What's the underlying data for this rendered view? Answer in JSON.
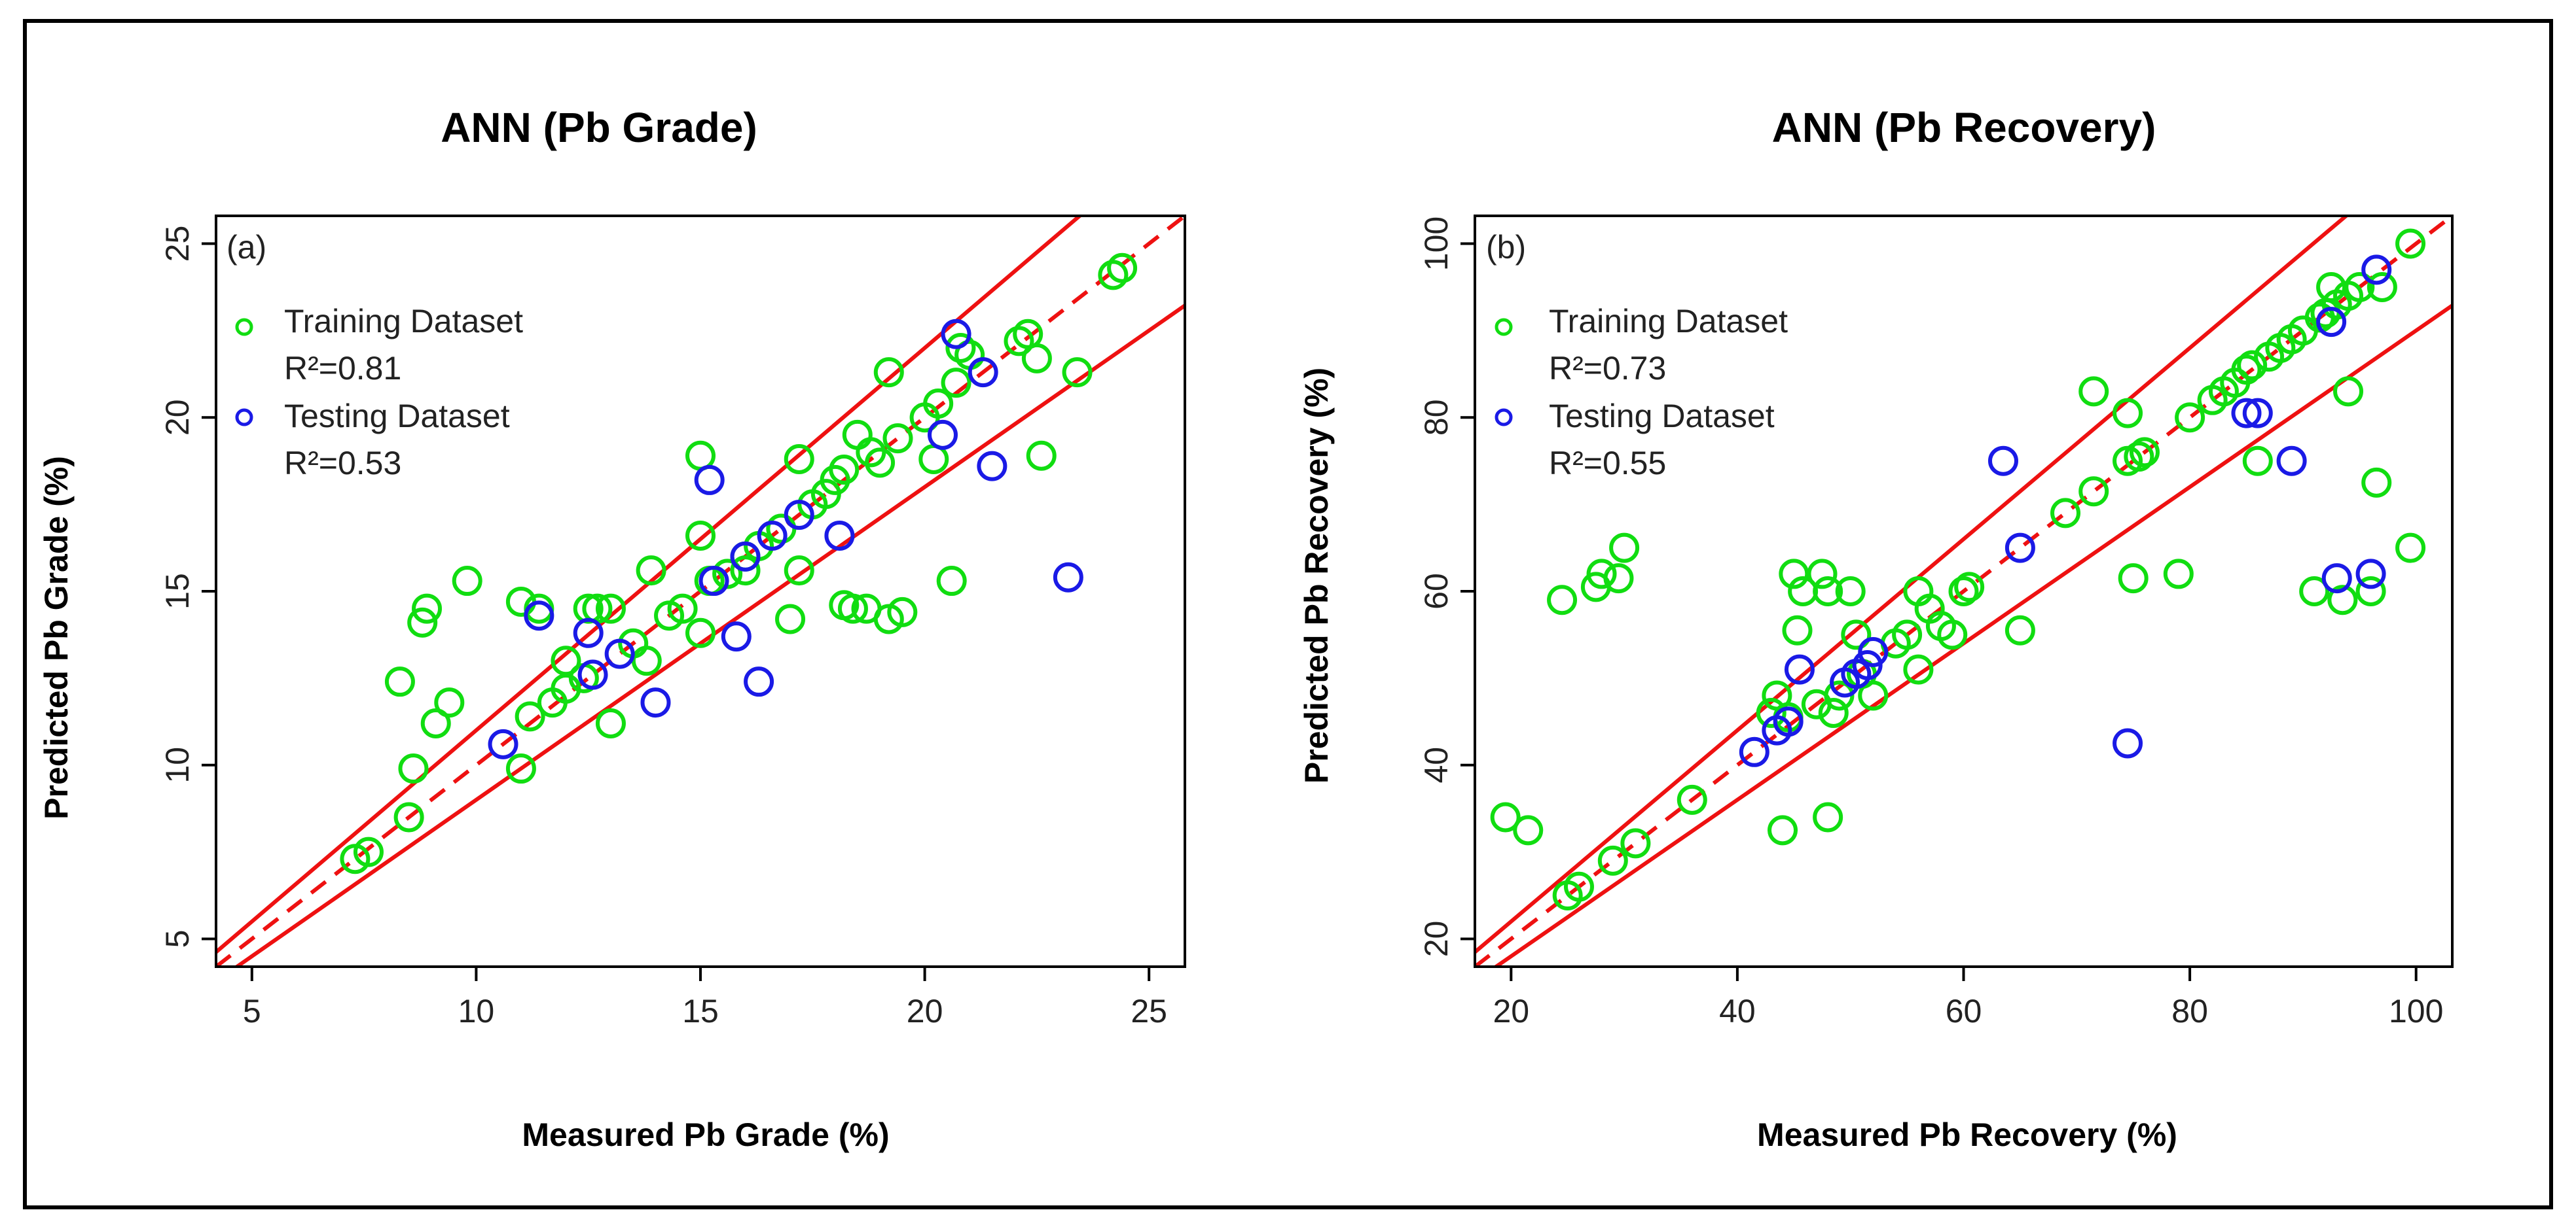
{
  "colors": {
    "training": "#11dd11",
    "testing": "#1a1ae6",
    "lines": "#ee1111",
    "frame": "#000000"
  },
  "chart_data": [
    {
      "type": "scatter",
      "panel_label": "(a)",
      "title": "ANN (Pb Grade)",
      "xlabel": "Measured Pb Grade (%)",
      "ylabel": "Predicted Pb Grade (%)",
      "xlim": [
        4.2,
        25.8
      ],
      "ylim": [
        4.2,
        25.8
      ],
      "xticks": [
        5,
        10,
        15,
        20,
        25
      ],
      "yticks": [
        5,
        10,
        15,
        20,
        25
      ],
      "xtick_labels": [
        "5",
        "10",
        "15",
        "20",
        "25"
      ],
      "ytick_labels": [
        "5",
        "10",
        "15",
        "20",
        "25"
      ],
      "legend": {
        "placement": "top-left",
        "entries": [
          {
            "label": "Training Dataset",
            "r2": "R²=0.81"
          },
          {
            "label": "Testing Dataset",
            "r2": "R²=0.53"
          }
        ]
      },
      "reference_lines": {
        "identity": "dashed",
        "upper_factor": 1.1,
        "lower_factor": 0.9
      },
      "series": [
        {
          "name": "Training Dataset",
          "points": [
            [
              7.3,
              7.3
            ],
            [
              7.6,
              7.5
            ],
            [
              8.5,
              8.5
            ],
            [
              8.3,
              12.4
            ],
            [
              8.6,
              9.9
            ],
            [
              8.8,
              14.1
            ],
            [
              8.9,
              14.5
            ],
            [
              9.1,
              11.2
            ],
            [
              9.4,
              11.8
            ],
            [
              9.8,
              15.3
            ],
            [
              11,
              9.9
            ],
            [
              11,
              14.7
            ],
            [
              11.2,
              11.4
            ],
            [
              11.4,
              14.5
            ],
            [
              11.7,
              11.8
            ],
            [
              12,
              12.2
            ],
            [
              12,
              13
            ],
            [
              12.4,
              12.5
            ],
            [
              12.5,
              14.5
            ],
            [
              12.7,
              14.5
            ],
            [
              13,
              14.5
            ],
            [
              13,
              11.2
            ],
            [
              13.5,
              13.5
            ],
            [
              13.8,
              13
            ],
            [
              13.9,
              15.6
            ],
            [
              14.3,
              14.3
            ],
            [
              14.6,
              14.5
            ],
            [
              15,
              13.8
            ],
            [
              15,
              16.6
            ],
            [
              15,
              18.9
            ],
            [
              15.2,
              15.3
            ],
            [
              15.6,
              15.5
            ],
            [
              16,
              15.6
            ],
            [
              16,
              16
            ],
            [
              16.3,
              16.3
            ],
            [
              16.8,
              16.8
            ],
            [
              17,
              14.2
            ],
            [
              17.2,
              15.6
            ],
            [
              17.2,
              18.8
            ],
            [
              17.5,
              17.5
            ],
            [
              17.8,
              17.8
            ],
            [
              18,
              18.2
            ],
            [
              18.2,
              18.5
            ],
            [
              18.2,
              14.6
            ],
            [
              18.4,
              14.5
            ],
            [
              18.5,
              19.5
            ],
            [
              18.7,
              14.5
            ],
            [
              18.8,
              19
            ],
            [
              19,
              18.7
            ],
            [
              19.2,
              21.3
            ],
            [
              19.2,
              14.2
            ],
            [
              19.4,
              19.4
            ],
            [
              19.5,
              14.4
            ],
            [
              20,
              20
            ],
            [
              20.2,
              18.8
            ],
            [
              20.3,
              20.4
            ],
            [
              20.6,
              15.3
            ],
            [
              20.7,
              21
            ],
            [
              20.8,
              22
            ],
            [
              21,
              21.8
            ],
            [
              22.1,
              22.2
            ],
            [
              22.3,
              22.4
            ],
            [
              22.5,
              21.7
            ],
            [
              22.6,
              18.9
            ],
            [
              23.4,
              21.3
            ],
            [
              24.2,
              24.1
            ],
            [
              24.4,
              24.3
            ]
          ]
        },
        {
          "name": "Testing Dataset",
          "points": [
            [
              10.6,
              10.6
            ],
            [
              11.4,
              14.3
            ],
            [
              12.5,
              13.8
            ],
            [
              12.6,
              12.6
            ],
            [
              13.2,
              13.2
            ],
            [
              14,
              11.8
            ],
            [
              15.2,
              18.2
            ],
            [
              15.3,
              15.3
            ],
            [
              15.8,
              13.7
            ],
            [
              16,
              16
            ],
            [
              16.3,
              12.4
            ],
            [
              16.6,
              16.6
            ],
            [
              17.2,
              17.2
            ],
            [
              18.1,
              16.6
            ],
            [
              20.4,
              19.5
            ],
            [
              20.7,
              22.4
            ],
            [
              21.3,
              21.3
            ],
            [
              21.5,
              18.6
            ],
            [
              23.2,
              15.4
            ]
          ]
        }
      ]
    },
    {
      "type": "scatter",
      "panel_label": "(b)",
      "title": "ANN (Pb Recovery)",
      "xlabel": "Measured Pb Recovery (%)",
      "ylabel": "Predicted Pb Recovery (%)",
      "xlim": [
        16.8,
        103.2
      ],
      "ylim": [
        16.8,
        103.2
      ],
      "xticks": [
        20,
        40,
        60,
        80,
        100
      ],
      "yticks": [
        20,
        40,
        60,
        80,
        100
      ],
      "xtick_labels": [
        "20",
        "40",
        "60",
        "80",
        "100"
      ],
      "ytick_labels": [
        "20",
        "40",
        "60",
        "80",
        "100"
      ],
      "legend": {
        "placement": "top-left",
        "entries": [
          {
            "label": "Training Dataset",
            "r2": "R²=0.73"
          },
          {
            "label": "Testing Dataset",
            "r2": "R²=0.55"
          }
        ]
      },
      "reference_lines": {
        "identity": "dashed",
        "upper_factor": 1.1,
        "lower_factor": 0.9
      },
      "series": [
        {
          "name": "Training Dataset",
          "points": [
            [
              19.5,
              34
            ],
            [
              21.5,
              32.5
            ],
            [
              24.5,
              59
            ],
            [
              25,
              25
            ],
            [
              26,
              26
            ],
            [
              27.5,
              60.5
            ],
            [
              28,
              62
            ],
            [
              29,
              29
            ],
            [
              29.5,
              61.5
            ],
            [
              30,
              65
            ],
            [
              31,
              31
            ],
            [
              36,
              36
            ],
            [
              43,
              46
            ],
            [
              43.5,
              48
            ],
            [
              44,
              32.5
            ],
            [
              44.5,
              45.5
            ],
            [
              45,
              62
            ],
            [
              45.3,
              55.5
            ],
            [
              45.8,
              60
            ],
            [
              47,
              47
            ],
            [
              47.5,
              62
            ],
            [
              48,
              34
            ],
            [
              48,
              60
            ],
            [
              48.5,
              46
            ],
            [
              49,
              48
            ],
            [
              50,
              60
            ],
            [
              50.5,
              55
            ],
            [
              51,
              50.5
            ],
            [
              52,
              48
            ],
            [
              54,
              54
            ],
            [
              55,
              55
            ],
            [
              56,
              51
            ],
            [
              56,
              60
            ],
            [
              57,
              58
            ],
            [
              58,
              56
            ],
            [
              59,
              55
            ],
            [
              60,
              60
            ],
            [
              60.5,
              60.5
            ],
            [
              65,
              55.5
            ],
            [
              69,
              69
            ],
            [
              71.5,
              71.5
            ],
            [
              71.5,
              83
            ],
            [
              74.5,
              75
            ],
            [
              74.5,
              80.5
            ],
            [
              75,
              61.5
            ],
            [
              75.5,
              75.5
            ],
            [
              76,
              76
            ],
            [
              79,
              62
            ],
            [
              80,
              80
            ],
            [
              82,
              82
            ],
            [
              83,
              83
            ],
            [
              84,
              84
            ],
            [
              85,
              85.5
            ],
            [
              85.5,
              86
            ],
            [
              86,
              75
            ],
            [
              87,
              87
            ],
            [
              88,
              88
            ],
            [
              89,
              89
            ],
            [
              90,
              90
            ],
            [
              91,
              60
            ],
            [
              91.5,
              91.5
            ],
            [
              92,
              92
            ],
            [
              92.5,
              95
            ],
            [
              93,
              93
            ],
            [
              93.5,
              59
            ],
            [
              94,
              94
            ],
            [
              94,
              83
            ],
            [
              95,
              95
            ],
            [
              96,
              60
            ],
            [
              96.5,
              72.5
            ],
            [
              97,
              95
            ],
            [
              99.5,
              100
            ],
            [
              99.5,
              65
            ]
          ]
        },
        {
          "name": "Testing Dataset",
          "points": [
            [
              41.5,
              41.5
            ],
            [
              43.5,
              44
            ],
            [
              44.5,
              45
            ],
            [
              45.5,
              51
            ],
            [
              49.5,
              49.5
            ],
            [
              50.5,
              50.5
            ],
            [
              51.5,
              51.5
            ],
            [
              52,
              53
            ],
            [
              63.5,
              75
            ],
            [
              65,
              65
            ],
            [
              74.5,
              42.5
            ],
            [
              85,
              80.5
            ],
            [
              86,
              80.5
            ],
            [
              89,
              75
            ],
            [
              92.5,
              91
            ],
            [
              93,
              61.5
            ],
            [
              96,
              62
            ],
            [
              96.5,
              97
            ]
          ]
        }
      ]
    }
  ]
}
